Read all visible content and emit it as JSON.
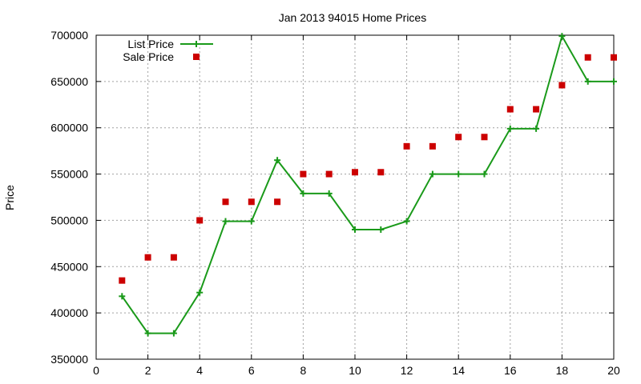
{
  "chart_data": {
    "type": "line",
    "title": "Jan 2013 94015 Home Prices",
    "xlabel": "",
    "ylabel": "Price",
    "xlim": [
      0,
      20
    ],
    "ylim": [
      350000,
      700000
    ],
    "x_ticks": [
      "0",
      "2",
      "4",
      "6",
      "8",
      "10",
      "12",
      "14",
      "16",
      "18",
      "20"
    ],
    "y_ticks": [
      "350000",
      "400000",
      "450000",
      "500000",
      "550000",
      "600000",
      "650000",
      "700000"
    ],
    "grid": true,
    "legend_position": "top-left",
    "series": [
      {
        "name": "List Price",
        "style": "line-with-plus-markers",
        "color": "#1a9a1a",
        "x": [
          1,
          2,
          3,
          4,
          5,
          6,
          7,
          8,
          9,
          10,
          11,
          12,
          13,
          14,
          15,
          16,
          17,
          18,
          19,
          20
        ],
        "values": [
          418000,
          378000,
          378000,
          422000,
          499000,
          499000,
          565000,
          529000,
          529000,
          490000,
          490000,
          499000,
          550000,
          550000,
          550000,
          599000,
          599000,
          699000,
          650000,
          650000
        ]
      },
      {
        "name": "Sale Price",
        "style": "square-markers",
        "color": "#cc0000",
        "x": [
          1,
          2,
          3,
          4,
          5,
          6,
          7,
          8,
          9,
          10,
          11,
          12,
          13,
          14,
          15,
          16,
          17,
          18,
          19,
          20
        ],
        "values": [
          435000,
          460000,
          460000,
          500000,
          520000,
          520000,
          520000,
          550000,
          550000,
          552000,
          552000,
          580000,
          580000,
          590000,
          590000,
          620000,
          620000,
          646000,
          676000,
          676000
        ]
      }
    ]
  }
}
